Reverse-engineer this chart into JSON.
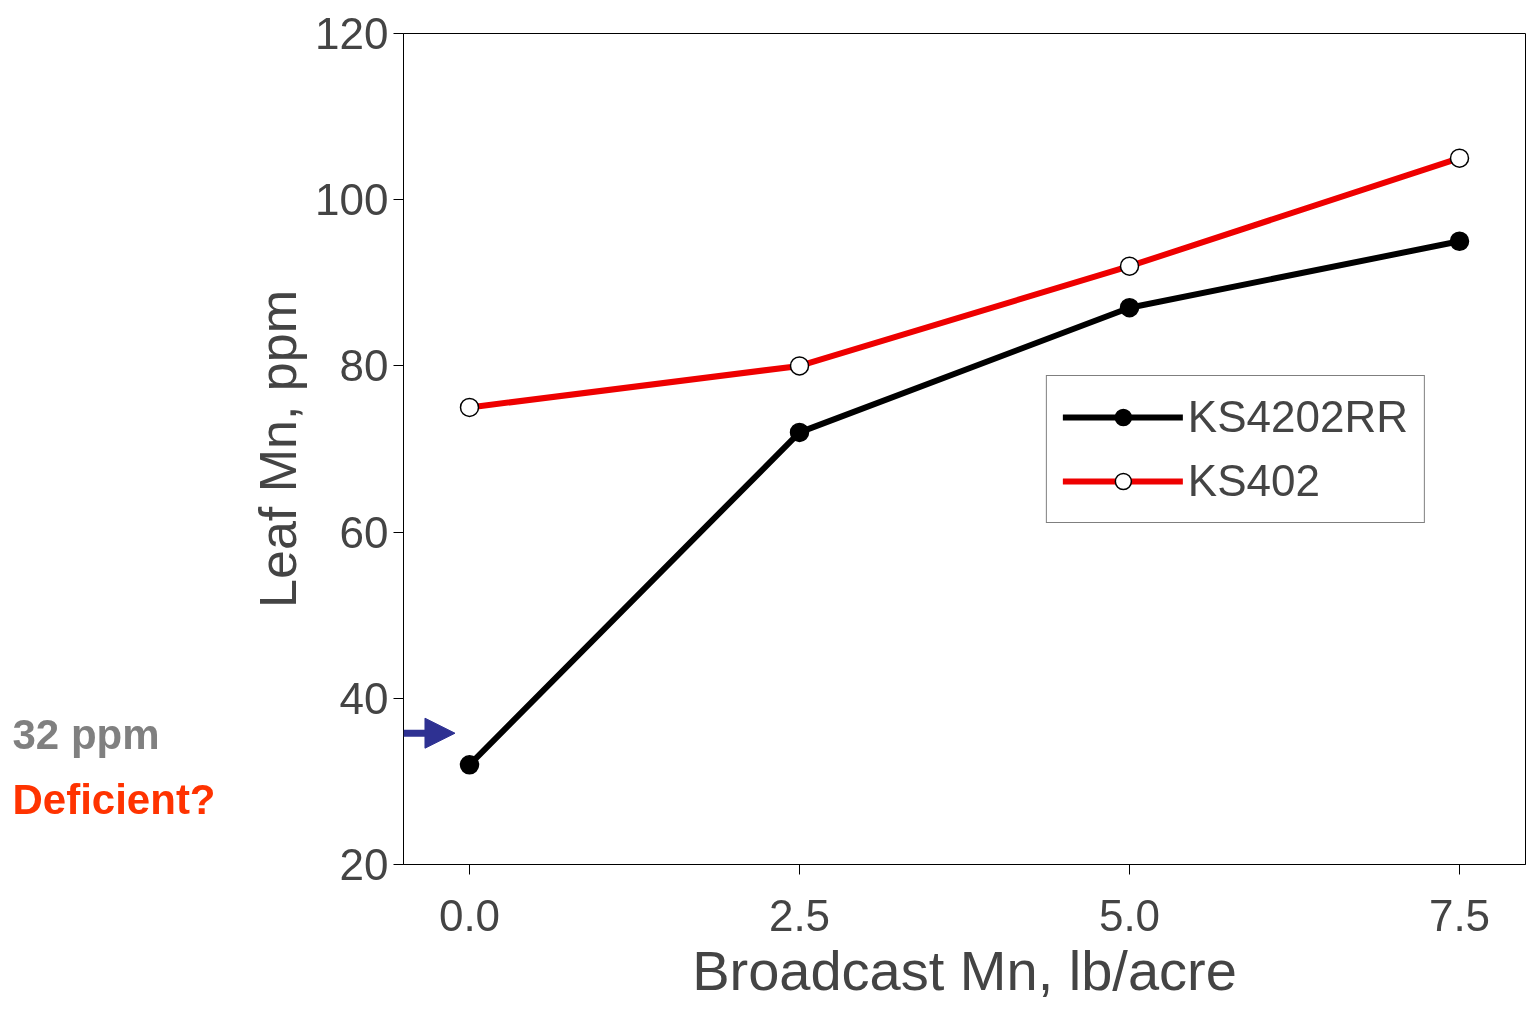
{
  "chart_data": {
    "type": "line",
    "xlabel": "Broadcast Mn, lb/acre",
    "ylabel": "Leaf Mn, ppm",
    "x": [
      0.0,
      2.5,
      5.0,
      7.5
    ],
    "series": [
      {
        "name": "KS4202RR",
        "color": "#000000",
        "values": [
          32,
          72,
          87,
          95
        ]
      },
      {
        "name": "KS402",
        "color": "#ee0000",
        "values": [
          75,
          80,
          92,
          105
        ]
      }
    ],
    "xlim": [
      -0.5,
      8.0
    ],
    "xticks": [
      {
        "value": 0,
        "label": "0.0"
      },
      {
        "value": 2.5,
        "label": "2.5"
      },
      {
        "value": 5,
        "label": "5.0"
      },
      {
        "value": 7.5,
        "label": "7.5"
      }
    ],
    "ylim": [
      20,
      120
    ],
    "yticks": [
      20,
      40,
      60,
      80,
      100,
      120
    ],
    "annotations": [
      "32 ppm",
      "Deficient?"
    ],
    "marker": "circle",
    "line_style": "solid",
    "grid": false,
    "legend": "right"
  }
}
